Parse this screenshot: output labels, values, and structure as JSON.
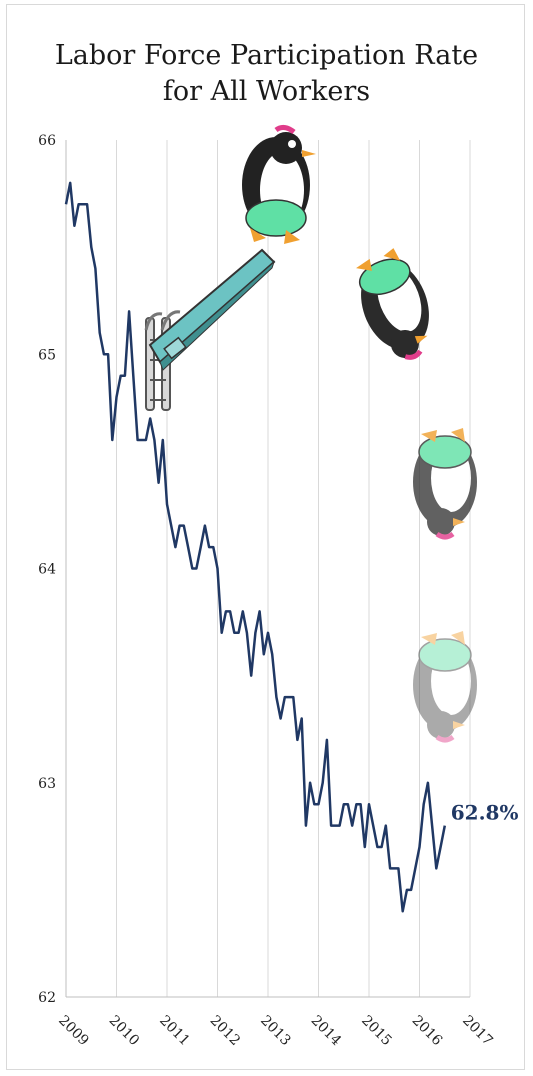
{
  "chart_data": {
    "type": "line",
    "title_lines": [
      "Labor Force Participation Rate",
      "for All Workers"
    ],
    "xlabel": "",
    "ylabel": "",
    "x_range": [
      2009,
      2017
    ],
    "ylim": [
      62,
      66
    ],
    "y_ticks": [
      "62",
      "63",
      "64",
      "65",
      "66"
    ],
    "x_ticks": [
      "2009",
      "2010",
      "2011",
      "2012",
      "2013",
      "2014",
      "2015",
      "2016",
      "2017"
    ],
    "grid": "vertical",
    "line_color": "#203864",
    "end_label": "62.8%",
    "series": [
      {
        "x": [
          2009.0,
          2009.083,
          2009.167,
          2009.25,
          2009.333,
          2009.417,
          2009.5,
          2009.583,
          2009.667,
          2009.75,
          2009.833,
          2009.917,
          2010.0,
          2010.083,
          2010.167,
          2010.25,
          2010.333,
          2010.417,
          2010.5,
          2010.583,
          2010.667,
          2010.75,
          2010.833,
          2010.917,
          2011.0,
          2011.083,
          2011.167,
          2011.25,
          2011.333,
          2011.417,
          2011.5,
          2011.583,
          2011.667,
          2011.75,
          2011.833,
          2011.917,
          2012.0,
          2012.083,
          2012.167,
          2012.25,
          2012.333,
          2012.417,
          2012.5,
          2012.583,
          2012.667,
          2012.75,
          2012.833,
          2012.917,
          2013.0,
          2013.083,
          2013.167,
          2013.25,
          2013.333,
          2013.417,
          2013.5,
          2013.583,
          2013.667,
          2013.75,
          2013.833,
          2013.917,
          2014.0,
          2014.083,
          2014.167,
          2014.25,
          2014.333,
          2014.417,
          2014.5,
          2014.583,
          2014.667,
          2014.75,
          2014.833,
          2014.917,
          2015.0,
          2015.083,
          2015.167,
          2015.25,
          2015.333,
          2015.417,
          2015.5,
          2015.583,
          2015.667,
          2015.75,
          2015.833,
          2015.917,
          2016.0,
          2016.083,
          2016.167,
          2016.25,
          2016.333,
          2016.417,
          2016.5
        ],
        "values": [
          65.7,
          65.8,
          65.6,
          65.7,
          65.7,
          65.7,
          65.5,
          65.4,
          65.1,
          65.0,
          65.0,
          64.6,
          64.8,
          64.9,
          64.9,
          65.2,
          64.9,
          64.6,
          64.6,
          64.6,
          64.7,
          64.6,
          64.4,
          64.6,
          64.3,
          64.2,
          64.1,
          64.2,
          64.2,
          64.1,
          64.0,
          64.0,
          64.1,
          64.2,
          64.1,
          64.1,
          64.0,
          63.7,
          63.8,
          63.8,
          63.7,
          63.7,
          63.8,
          63.7,
          63.5,
          63.7,
          63.8,
          63.6,
          63.7,
          63.6,
          63.4,
          63.3,
          63.4,
          63.4,
          63.4,
          63.2,
          63.3,
          62.8,
          63.0,
          62.9,
          62.9,
          63.0,
          63.2,
          62.8,
          62.8,
          62.8,
          62.9,
          62.9,
          62.8,
          62.9,
          62.9,
          62.7,
          62.9,
          62.8,
          62.7,
          62.7,
          62.8,
          62.6,
          62.6,
          62.6,
          62.4,
          62.5,
          62.5,
          62.6,
          62.7,
          62.9,
          63.0,
          62.8,
          62.6,
          62.7,
          62.8
        ]
      }
    ]
  },
  "illustration": {
    "description_icons": [
      "diving-board-icon",
      "penguin-diving-icon"
    ]
  }
}
